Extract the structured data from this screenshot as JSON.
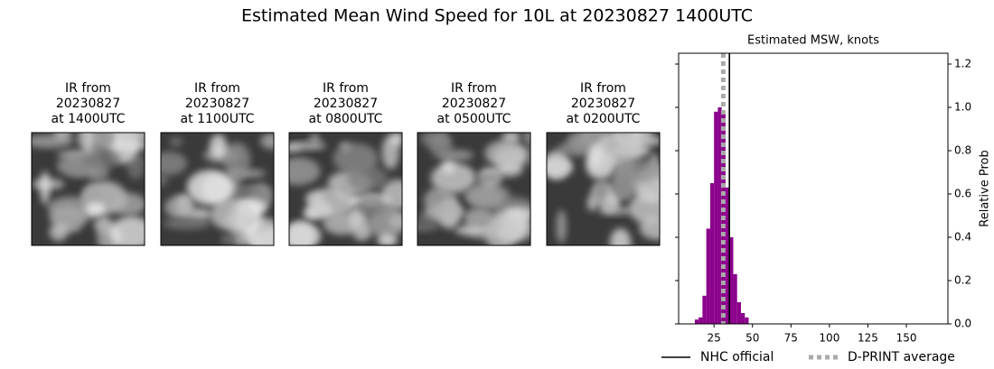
{
  "title": "Estimated Mean Wind Speed for 10L at 20230827 1400UTC",
  "panels": [
    {
      "label": [
        "IR from",
        "20230827",
        "at 1400UTC"
      ]
    },
    {
      "label": [
        "IR from",
        "20230827",
        "at 1100UTC"
      ]
    },
    {
      "label": [
        "IR from",
        "20230827",
        "at 0800UTC"
      ]
    },
    {
      "label": [
        "IR from",
        "20230827",
        "at 0500UTC"
      ]
    },
    {
      "label": [
        "IR from",
        "20230827",
        "at 0200UTC"
      ]
    }
  ],
  "chart_data": {
    "type": "histogram",
    "title": "Estimated MSW, knots",
    "y_label": "Relative Prob",
    "bins": [
      12.5,
      15,
      17.5,
      20,
      22.5,
      25,
      27.5,
      30,
      32.5,
      35,
      37.5,
      40,
      42.5,
      45,
      47.5
    ],
    "counts": [
      0.02,
      0.03,
      0.13,
      0.44,
      0.65,
      0.98,
      1.0,
      0.97,
      0.63,
      0.4,
      0.23,
      0.1,
      0.05,
      0.03
    ],
    "color": "#8b008b",
    "xlim": [
      2,
      177
    ],
    "xticks": [
      25,
      50,
      75,
      100,
      125,
      150
    ],
    "ylim": [
      0,
      1.25
    ],
    "yticks": [
      {
        "value": 0,
        "label": "0.0"
      },
      0.2,
      0.4,
      0.6,
      0.8,
      {
        "value": 1,
        "label": "1.0"
      },
      1.2
    ],
    "lines": [
      {
        "name": "NHC official",
        "x": 35,
        "color": "#000000",
        "dashed": false
      },
      {
        "name": "D-PRINT average",
        "x": 31,
        "color": "#aaaaaa",
        "dashed": true
      }
    ],
    "legend": "bottom"
  }
}
